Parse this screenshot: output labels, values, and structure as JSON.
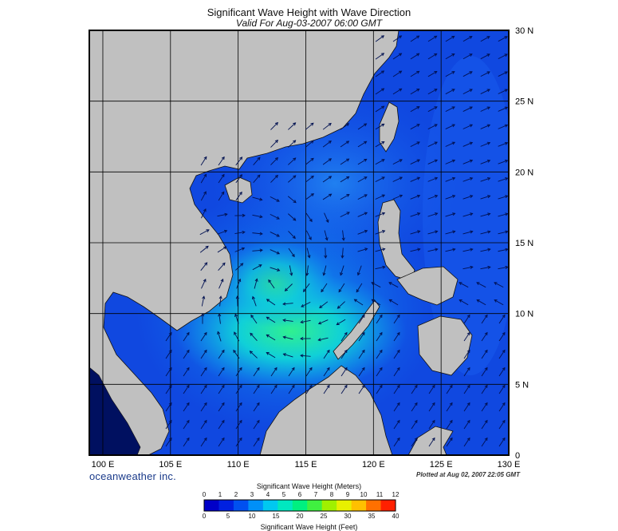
{
  "title": "Significant Wave Height with Wave Direction",
  "subtitle": "Valid For Aug-03-2007 06:00 GMT",
  "brand": "oceanweather inc.",
  "plotted_at": "Plotted at Aug 02, 2007 22:05 GMT",
  "map": {
    "lon_range": [
      99,
      130
    ],
    "lat_range": [
      0,
      30
    ],
    "lon_ticks": [
      "100 E",
      "105 E",
      "110 E",
      "115 E",
      "120 E",
      "125 E",
      "130 E"
    ],
    "lon_tick_values": [
      100,
      105,
      110,
      115,
      120,
      125,
      130
    ],
    "lat_ticks": [
      "0",
      "5 N",
      "10 N",
      "15 N",
      "20 N",
      "25 N",
      "30 N"
    ],
    "lat_tick_values": [
      0,
      5,
      10,
      15,
      20,
      25,
      30
    ],
    "grid": true,
    "land_color": "#c0c0c0",
    "ocean_base_color": "#1040e0"
  },
  "legend": {
    "title_meters": "Significant Wave Height (Meters)",
    "title_feet": "Significant Wave Height (Feet)",
    "meter_ticks": [
      "0",
      "1",
      "2",
      "3",
      "4",
      "5",
      "6",
      "7",
      "8",
      "9",
      "10",
      "11",
      "12"
    ],
    "feet_ticks": [
      "0",
      "5",
      "10",
      "15",
      "20",
      "25",
      "30",
      "35",
      "40"
    ],
    "colors": [
      "#0000c8",
      "#0020e0",
      "#0050f0",
      "#0090f8",
      "#00c8f0",
      "#00e8c0",
      "#00f080",
      "#40f040",
      "#a0f000",
      "#e8f000",
      "#ffc000",
      "#ff7000",
      "#ff2000"
    ]
  }
}
